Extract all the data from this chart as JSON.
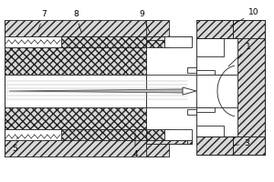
{
  "fig_width": 3.0,
  "fig_height": 2.0,
  "dpi": 100,
  "lc": "#222222",
  "lw": 0.6,
  "gray_light": "#d8d8d8",
  "gray_mid": "#c0c0c0",
  "white": "#ffffff",
  "label_fs": 6.5,
  "labels": [
    [
      "7",
      48,
      16,
      40,
      38
    ],
    [
      "8",
      83,
      16,
      90,
      38
    ],
    [
      "9",
      155,
      16,
      165,
      38
    ],
    [
      "10",
      278,
      14,
      250,
      30
    ],
    [
      "1",
      272,
      52,
      248,
      75
    ],
    [
      "3",
      270,
      158,
      253,
      160
    ],
    [
      "4",
      148,
      170,
      148,
      143
    ],
    [
      "5",
      16,
      163,
      20,
      148
    ]
  ]
}
